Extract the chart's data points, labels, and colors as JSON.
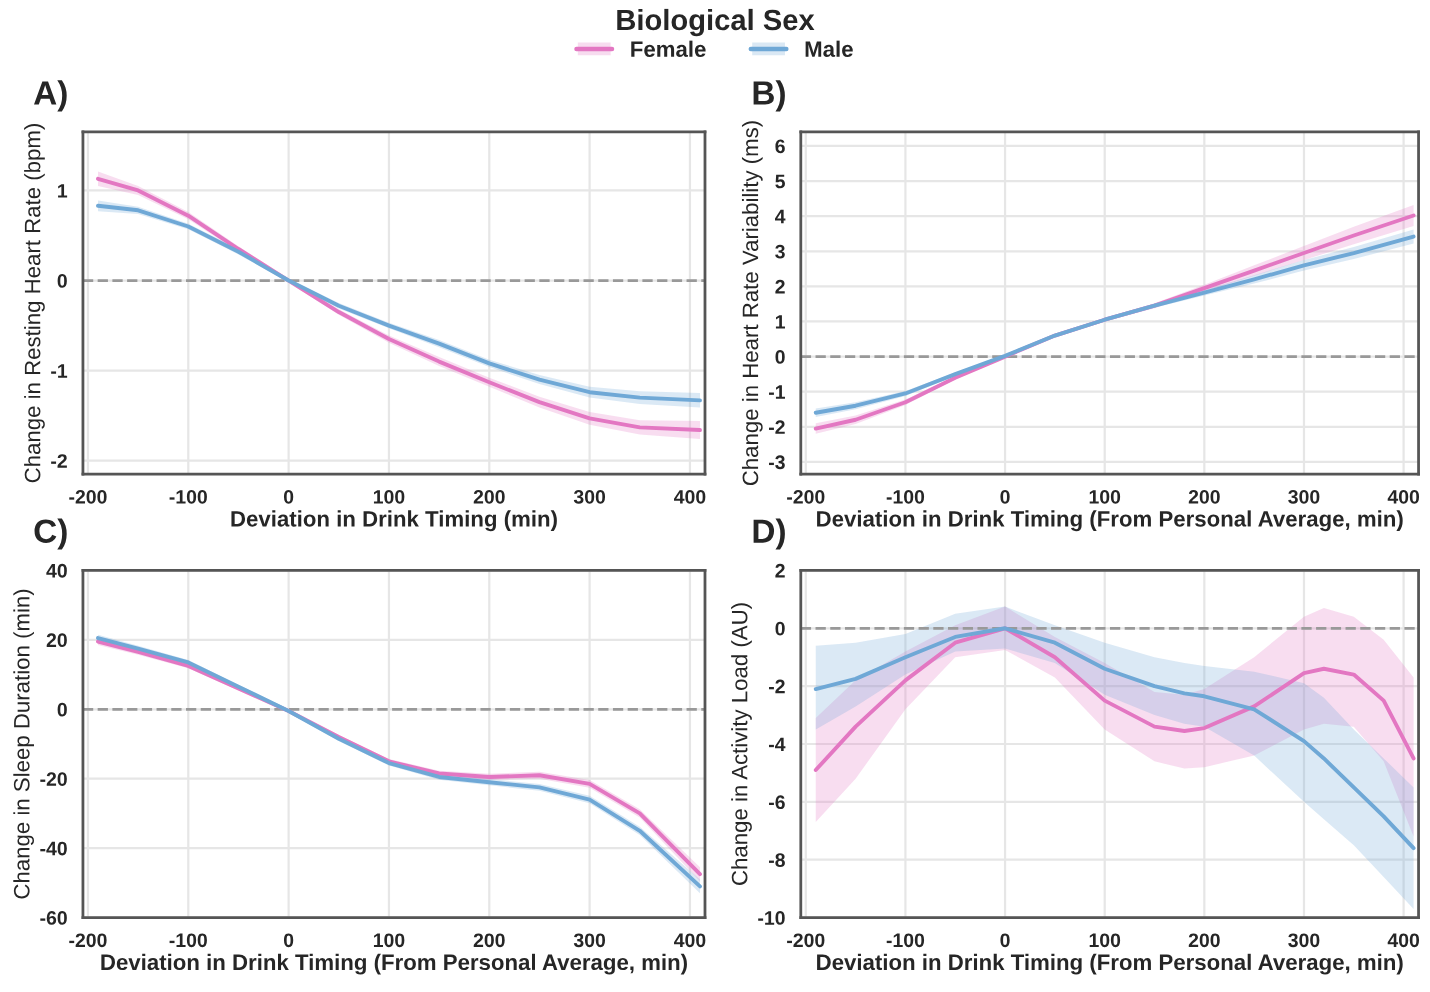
{
  "chart_data": [
    {
      "type": "line",
      "title": "A)",
      "xlabel": "Deviation in Drink Timing (min)",
      "ylabel": "Change in Resting Heart Rate (bpm)",
      "legend_title": "Biological Sex",
      "legend": "top",
      "grid": true,
      "line_style": "solid",
      "x": [
        -190,
        -150,
        -100,
        -50,
        0,
        50,
        100,
        150,
        200,
        250,
        300,
        350,
        410
      ],
      "xlim": [
        -205,
        415
      ],
      "xticks": [
        -200,
        -100,
        0,
        100,
        200,
        300,
        400
      ],
      "ylim": [
        -2.15,
        1.65
      ],
      "yticks": [
        -2,
        -1,
        0,
        1
      ],
      "ref_lines": [
        {
          "axis": "y",
          "value": 0,
          "color": "#999999",
          "line_style": "dashed"
        }
      ],
      "series": [
        {
          "name": "Female",
          "color": "#e377c2",
          "values": [
            1.13,
            1.0,
            0.72,
            0.35,
            0,
            -0.35,
            -0.65,
            -0.9,
            -1.13,
            -1.35,
            -1.53,
            -1.63,
            -1.66
          ],
          "lower": [
            1.05,
            0.95,
            0.68,
            0.32,
            -0.02,
            -0.38,
            -0.69,
            -0.95,
            -1.18,
            -1.41,
            -1.6,
            -1.71,
            -1.76
          ],
          "upper": [
            1.21,
            1.05,
            0.76,
            0.38,
            0.02,
            -0.32,
            -0.61,
            -0.85,
            -1.08,
            -1.29,
            -1.46,
            -1.55,
            -1.56
          ]
        },
        {
          "name": "Male",
          "color": "#6fa8d6",
          "values": [
            0.83,
            0.78,
            0.6,
            0.32,
            0,
            -0.28,
            -0.5,
            -0.7,
            -0.92,
            -1.1,
            -1.24,
            -1.3,
            -1.33
          ],
          "lower": [
            0.77,
            0.74,
            0.57,
            0.29,
            -0.02,
            -0.31,
            -0.53,
            -0.74,
            -0.96,
            -1.15,
            -1.3,
            -1.37,
            -1.41
          ],
          "upper": [
            0.89,
            0.82,
            0.63,
            0.35,
            0.02,
            -0.25,
            -0.47,
            -0.66,
            -0.88,
            -1.05,
            -1.18,
            -1.23,
            -1.25
          ]
        }
      ]
    },
    {
      "type": "line",
      "title": "B)",
      "xlabel": "Deviation in Drink Timing (From Personal Average, min)",
      "ylabel": "Change in Heart Rate Variability (ms)",
      "grid": true,
      "line_style": "solid",
      "x": [
        -190,
        -150,
        -100,
        -50,
        0,
        50,
        100,
        150,
        200,
        250,
        300,
        350,
        410
      ],
      "xlim": [
        -205,
        415
      ],
      "xticks": [
        -200,
        -100,
        0,
        100,
        200,
        300,
        400
      ],
      "ylim": [
        -3.35,
        6.4
      ],
      "yticks": [
        -3,
        -2,
        -1,
        0,
        1,
        2,
        3,
        4,
        5,
        6
      ],
      "ref_lines": [
        {
          "axis": "y",
          "value": 0,
          "color": "#999999",
          "line_style": "dashed"
        }
      ],
      "series": [
        {
          "color": "#e377c2",
          "values": [
            -2.05,
            -1.8,
            -1.3,
            -0.6,
            0,
            0.6,
            1.05,
            1.45,
            1.95,
            2.45,
            2.95,
            3.45,
            4.02
          ],
          "lower": [
            -2.2,
            -1.92,
            -1.38,
            -0.65,
            -0.03,
            0.55,
            1.0,
            1.38,
            1.85,
            2.3,
            2.75,
            3.2,
            3.72
          ],
          "upper": [
            -1.9,
            -1.68,
            -1.22,
            -0.55,
            0.03,
            0.65,
            1.1,
            1.52,
            2.05,
            2.6,
            3.15,
            3.7,
            4.32
          ]
        },
        {
          "color": "#6fa8d6",
          "values": [
            -1.6,
            -1.4,
            -1.05,
            -0.5,
            0.02,
            0.6,
            1.05,
            1.45,
            1.82,
            2.2,
            2.6,
            2.95,
            3.42
          ],
          "lower": [
            -1.72,
            -1.5,
            -1.12,
            -0.55,
            -0.01,
            0.55,
            1.0,
            1.39,
            1.74,
            2.08,
            2.45,
            2.78,
            3.22
          ],
          "upper": [
            -1.48,
            -1.3,
            -0.98,
            -0.45,
            0.05,
            0.65,
            1.1,
            1.51,
            1.9,
            2.32,
            2.75,
            3.12,
            3.62
          ]
        }
      ]
    },
    {
      "type": "line",
      "title": "C)",
      "xlabel": "Deviation in Drink Timing (From Personal Average, min)",
      "ylabel": "Change in Sleep Duration (min)",
      "grid": true,
      "line_style": "solid",
      "x": [
        -190,
        -150,
        -100,
        -50,
        0,
        50,
        100,
        150,
        200,
        250,
        300,
        350,
        410
      ],
      "xlim": [
        -205,
        415
      ],
      "xticks": [
        -200,
        -100,
        0,
        100,
        200,
        300,
        400
      ],
      "ylim": [
        -60,
        40
      ],
      "yticks": [
        -60,
        -40,
        -20,
        0,
        20,
        40
      ],
      "ref_lines": [
        {
          "axis": "y",
          "value": 0,
          "color": "#999999",
          "line_style": "dashed"
        }
      ],
      "series": [
        {
          "color": "#e377c2",
          "values": [
            19.5,
            16.5,
            12.5,
            6,
            -0.5,
            -8,
            -15,
            -18.5,
            -19.5,
            -19,
            -21.5,
            -30,
            -47.5
          ],
          "lower": [
            18.5,
            15.7,
            11.8,
            5.4,
            -1,
            -8.6,
            -15.7,
            -19.3,
            -20.4,
            -20,
            -22.6,
            -31.2,
            -49.5
          ],
          "upper": [
            20.5,
            17.3,
            13.2,
            6.6,
            0,
            -7.4,
            -14.3,
            -17.7,
            -18.6,
            -18,
            -20.4,
            -28.8,
            -45.5
          ]
        },
        {
          "color": "#6fa8d6",
          "values": [
            20.5,
            17.5,
            13.5,
            6.5,
            -0.5,
            -8.5,
            -15.5,
            -19.5,
            -21,
            -22.5,
            -26,
            -35,
            -51
          ],
          "lower": [
            19.5,
            16.7,
            12.8,
            5.9,
            -1,
            -9.1,
            -16.2,
            -20.3,
            -21.9,
            -23.5,
            -27.1,
            -36.2,
            -53
          ],
          "upper": [
            21.5,
            18.3,
            14.2,
            7.1,
            0,
            -7.9,
            -14.8,
            -18.7,
            -20.1,
            -21.5,
            -24.9,
            -33.8,
            -49
          ]
        }
      ]
    },
    {
      "type": "line",
      "title": "D)",
      "xlabel": "Deviation in Drink Timing (From Personal Average, min)",
      "ylabel": "Change in Activity Load (AU)",
      "grid": true,
      "line_style": "solid",
      "x": [
        -190,
        -150,
        -100,
        -50,
        0,
        50,
        100,
        150,
        180,
        200,
        250,
        300,
        320,
        350,
        380,
        410
      ],
      "xlim": [
        -205,
        415
      ],
      "xticks": [
        -200,
        -100,
        0,
        100,
        200,
        300,
        400
      ],
      "ylim": [
        -10,
        2
      ],
      "yticks": [
        -10,
        -8,
        -6,
        -4,
        -2,
        0,
        2
      ],
      "ref_lines": [
        {
          "axis": "y",
          "value": 0,
          "color": "#999999",
          "line_style": "dashed"
        }
      ],
      "series": [
        {
          "color": "#e377c2",
          "values": [
            -4.9,
            -3.4,
            -1.8,
            -0.5,
            0,
            -1.0,
            -2.5,
            -3.4,
            -3.55,
            -3.45,
            -2.7,
            -1.55,
            -1.4,
            -1.6,
            -2.5,
            -4.5
          ],
          "lower": [
            -6.7,
            -5.2,
            -2.8,
            -1.0,
            -0.75,
            -1.7,
            -3.5,
            -4.6,
            -4.85,
            -4.8,
            -4.4,
            -3.5,
            -3.3,
            -3.4,
            -4.6,
            -7.2
          ],
          "upper": [
            -3.1,
            -1.8,
            -0.8,
            0.1,
            0.75,
            -0.3,
            -1.2,
            -2.2,
            -2.3,
            -2.1,
            -1.0,
            0.4,
            0.7,
            0.4,
            -0.4,
            -1.7
          ]
        },
        {
          "color": "#6fa8d6",
          "values": [
            -2.1,
            -1.75,
            -1.0,
            -0.3,
            0,
            -0.5,
            -1.4,
            -2.0,
            -2.25,
            -2.35,
            -2.8,
            -3.9,
            -4.5,
            -5.5,
            -6.5,
            -7.6
          ],
          "lower": [
            -3.5,
            -2.7,
            -1.6,
            -0.8,
            -0.7,
            -1.2,
            -2.3,
            -3.0,
            -3.3,
            -3.4,
            -4.4,
            -6.0,
            -6.6,
            -7.5,
            -8.6,
            -9.7
          ],
          "upper": [
            -0.6,
            -0.5,
            -0.2,
            0.5,
            0.75,
            0.1,
            -0.5,
            -1.0,
            -1.2,
            -1.3,
            -1.5,
            -1.9,
            -2.4,
            -3.5,
            -4.5,
            -5.5
          ]
        }
      ]
    }
  ]
}
